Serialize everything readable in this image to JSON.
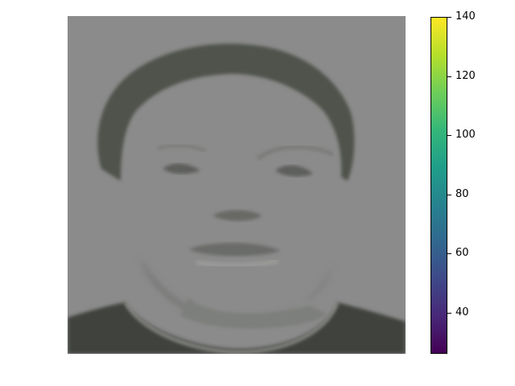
{
  "image": {
    "subject": "face",
    "background_color": "#8b8b8b"
  },
  "colorbar": {
    "colormap": "viridis",
    "range": [
      26,
      140
    ],
    "stops": [
      "#440154",
      "#482878",
      "#3e4989",
      "#31688e",
      "#26828e",
      "#1f9e89",
      "#35b779",
      "#6ece58",
      "#b5de2b",
      "#fde725"
    ],
    "ticks": [
      {
        "value": 40,
        "label": "40"
      },
      {
        "value": 60,
        "label": "60"
      },
      {
        "value": 80,
        "label": "80"
      },
      {
        "value": 100,
        "label": "100"
      },
      {
        "value": 120,
        "label": "120"
      },
      {
        "value": 140,
        "label": "140"
      }
    ]
  }
}
